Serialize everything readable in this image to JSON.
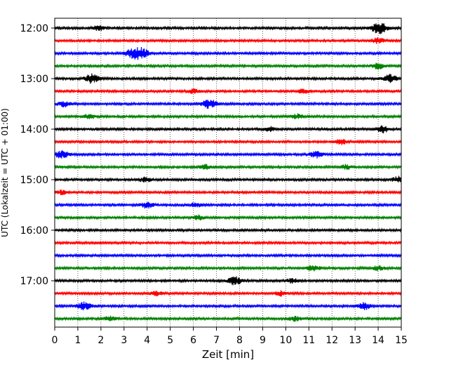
{
  "chart_data": {
    "type": "line",
    "title": "",
    "xlabel": "Zeit  [min]",
    "ylabel": "UTC (Lokalzeit = UTC + 01:00)",
    "xlim": [
      0,
      15
    ],
    "x_ticks": [
      0,
      1,
      2,
      3,
      4,
      5,
      6,
      7,
      8,
      9,
      10,
      11,
      12,
      13,
      14,
      15
    ],
    "y_tick_labels": [
      "12:00",
      "13:00",
      "14:00",
      "15:00",
      "16:00",
      "17:00"
    ],
    "grid": "vertical dotted lines at each minute",
    "legend": "none",
    "trace_interval_minutes": 15,
    "start_time": "12:00",
    "trace_colors": [
      "#000000",
      "#ff0000",
      "#0000ff",
      "#008000"
    ],
    "series": [
      {
        "start": "12:00",
        "color": "#000000",
        "events": [
          {
            "t": 1.9,
            "amp": 0.4
          },
          {
            "t": 14.05,
            "amp": 1.0
          }
        ]
      },
      {
        "start": "12:15",
        "color": "#ff0000",
        "events": [
          {
            "t": 14.0,
            "amp": 0.5
          }
        ]
      },
      {
        "start": "12:30",
        "color": "#0000ff",
        "events": [
          {
            "t": 3.7,
            "amp": 1.0
          },
          {
            "t": 3.3,
            "amp": 0.6
          }
        ]
      },
      {
        "start": "12:45",
        "color": "#008000",
        "events": [
          {
            "t": 14.0,
            "amp": 0.5
          }
        ]
      },
      {
        "start": "13:00",
        "color": "#000000",
        "events": [
          {
            "t": 1.6,
            "amp": 0.8
          },
          {
            "t": 14.5,
            "amp": 0.7
          }
        ]
      },
      {
        "start": "13:15",
        "color": "#ff0000",
        "events": [
          {
            "t": 6.0,
            "amp": 0.4
          },
          {
            "t": 10.8,
            "amp": 0.4
          }
        ]
      },
      {
        "start": "13:30",
        "color": "#0000ff",
        "events": [
          {
            "t": 0.4,
            "amp": 0.5
          },
          {
            "t": 6.7,
            "amp": 0.8
          }
        ]
      },
      {
        "start": "13:45",
        "color": "#008000",
        "events": [
          {
            "t": 1.5,
            "amp": 0.4
          },
          {
            "t": 10.5,
            "amp": 0.4
          }
        ]
      },
      {
        "start": "14:00",
        "color": "#000000",
        "events": [
          {
            "t": 9.3,
            "amp": 0.4
          },
          {
            "t": 14.2,
            "amp": 0.6
          }
        ]
      },
      {
        "start": "14:15",
        "color": "#ff0000",
        "events": [
          {
            "t": 12.4,
            "amp": 0.5
          }
        ]
      },
      {
        "start": "14:30",
        "color": "#0000ff",
        "events": [
          {
            "t": 0.3,
            "amp": 0.7
          },
          {
            "t": 11.3,
            "amp": 0.6
          }
        ]
      },
      {
        "start": "14:45",
        "color": "#008000",
        "events": [
          {
            "t": 6.5,
            "amp": 0.4
          },
          {
            "t": 12.6,
            "amp": 0.4
          }
        ]
      },
      {
        "start": "15:00",
        "color": "#000000",
        "events": [
          {
            "t": 3.9,
            "amp": 0.4
          },
          {
            "t": 14.9,
            "amp": 0.6
          }
        ]
      },
      {
        "start": "15:15",
        "color": "#ff0000",
        "events": [
          {
            "t": 0.3,
            "amp": 0.4
          }
        ]
      },
      {
        "start": "15:30",
        "color": "#0000ff",
        "events": [
          {
            "t": 4.0,
            "amp": 0.6
          },
          {
            "t": 6.1,
            "amp": 0.4
          }
        ]
      },
      {
        "start": "15:45",
        "color": "#008000",
        "events": [
          {
            "t": 6.2,
            "amp": 0.4
          }
        ]
      },
      {
        "start": "16:00",
        "color": "#000000",
        "events": []
      },
      {
        "start": "16:15",
        "color": "#ff0000",
        "events": []
      },
      {
        "start": "16:30",
        "color": "#0000ff",
        "events": []
      },
      {
        "start": "16:45",
        "color": "#008000",
        "events": [
          {
            "t": 11.2,
            "amp": 0.5
          },
          {
            "t": 14.0,
            "amp": 0.4
          }
        ]
      },
      {
        "start": "17:00",
        "color": "#000000",
        "events": [
          {
            "t": 7.8,
            "amp": 0.7
          },
          {
            "t": 10.3,
            "amp": 0.4
          }
        ]
      },
      {
        "start": "17:15",
        "color": "#ff0000",
        "events": [
          {
            "t": 4.4,
            "amp": 0.4
          },
          {
            "t": 9.8,
            "amp": 0.4
          }
        ]
      },
      {
        "start": "17:30",
        "color": "#0000ff",
        "events": [
          {
            "t": 1.3,
            "amp": 0.7
          },
          {
            "t": 13.4,
            "amp": 0.6
          }
        ]
      },
      {
        "start": "17:45",
        "color": "#008000",
        "events": [
          {
            "t": 2.4,
            "amp": 0.4
          },
          {
            "t": 10.4,
            "amp": 0.4
          }
        ]
      }
    ]
  }
}
